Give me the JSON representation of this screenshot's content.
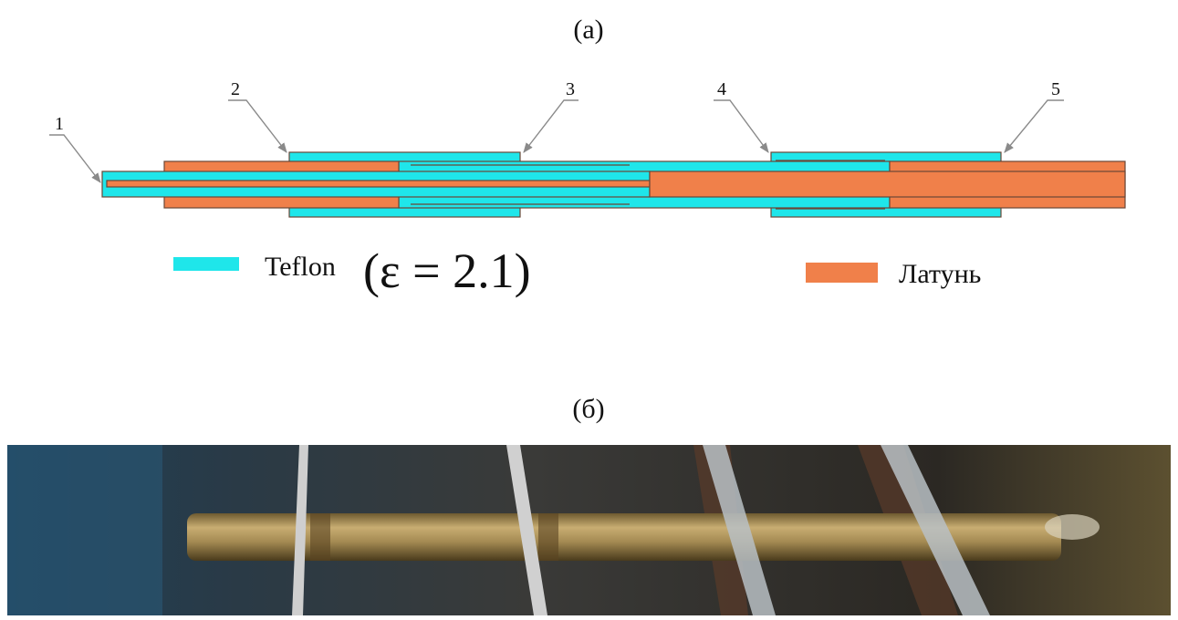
{
  "panel_a": {
    "label": "(а)",
    "callouts": [
      "1",
      "2",
      "3",
      "4",
      "5"
    ],
    "legend": [
      {
        "name": "Teflon",
        "formula": "(ε = 2.1)"
      },
      {
        "name": "Латунь"
      }
    ]
  },
  "panel_b": {
    "label": "(б)"
  }
}
